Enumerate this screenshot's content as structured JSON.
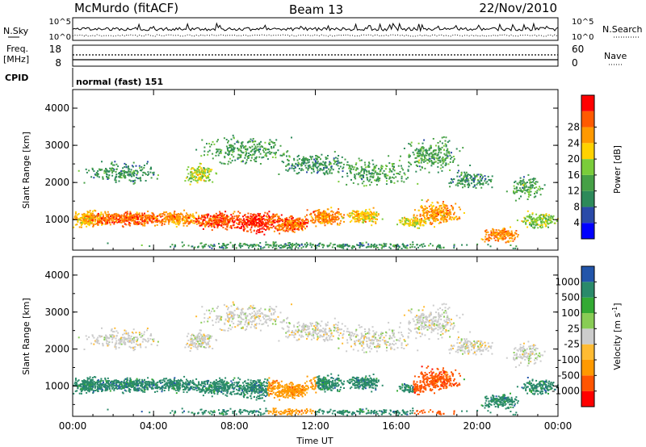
{
  "header": {
    "station": "McMurdo (fitACF)",
    "beam": "Beam 13",
    "date": "22/Nov/2010"
  },
  "sky_panel": {
    "left_label": "N.Sky",
    "right_label": "N.Search",
    "ticks": [
      "10^5",
      "10^0"
    ]
  },
  "freq_panel": {
    "left_label": "Freq.",
    "left_unit": "[MHz]",
    "left_ticks": [
      "18",
      "8"
    ],
    "right_label": "Nave",
    "right_ticks": [
      "60",
      "0"
    ]
  },
  "cpid": {
    "label": "CPID",
    "text": "normal (fast) 151"
  },
  "colors": {
    "power": [
      "#0000ff",
      "#2a4aa8",
      "#2d8a5a",
      "#46a046",
      "#7acc3a",
      "#ffd200",
      "#ff9900",
      "#ff5a00",
      "#ff0000"
    ],
    "velocity": [
      "#ff0000",
      "#ff5500",
      "#ff9900",
      "#ffbb33",
      "#cccccc",
      "#88cc55",
      "#33aa33",
      "#2a8a6a",
      "#2255aa"
    ]
  },
  "chart_data": [
    {
      "type": "heatmap",
      "ylabel": "Slant Range [km]",
      "ylim": [
        180,
        4500
      ],
      "yticks": [
        1000,
        2000,
        3000,
        4000
      ],
      "xticks": [
        "00:00",
        "04:00",
        "08:00",
        "12:00",
        "16:00",
        "20:00",
        "00:00"
      ],
      "colorbar": {
        "label": "Power [dB]",
        "ticks": [
          "4",
          "8",
          "12",
          "16",
          "20",
          "24",
          "28"
        ]
      }
    },
    {
      "type": "heatmap",
      "ylabel": "Slant Range [km]",
      "xlabel": "Time UT",
      "ylim": [
        180,
        4500
      ],
      "yticks": [
        1000,
        2000,
        3000,
        4000
      ],
      "xticks": [
        "00:00",
        "04:00",
        "08:00",
        "12:00",
        "16:00",
        "20:00",
        "00:00"
      ],
      "colorbar": {
        "label": "Velocity [m s^-1]",
        "ticks": [
          "1000",
          "500",
          "100",
          "25",
          "-25",
          "-100",
          "-500",
          "-1000"
        ]
      }
    }
  ]
}
